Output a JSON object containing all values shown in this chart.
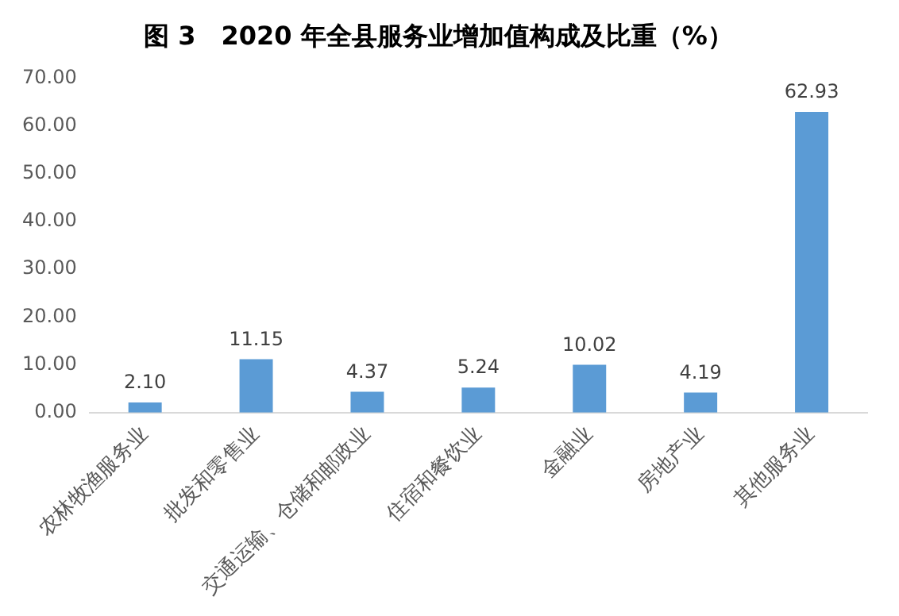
{
  "chart_data": {
    "type": "bar",
    "title": "图 3　2020 年全县服务业增加值构成及比重（%）",
    "categories": [
      "农林牧渔服务业",
      "批发和零售业",
      "交通运输、仓储和邮政业",
      "住宿和餐饮业",
      "金融业",
      "房地产业",
      "其他服务业"
    ],
    "values": [
      2.1,
      11.15,
      4.37,
      5.24,
      10.02,
      4.19,
      62.93
    ],
    "value_labels": [
      "2.10",
      "11.15",
      "4.37",
      "5.24",
      "10.02",
      "4.19",
      "62.93"
    ],
    "color": "#5b9bd5",
    "ylim": [
      0,
      70
    ],
    "yticks": [
      {
        "value": 0,
        "label": "0.00"
      },
      {
        "value": 10,
        "label": "10.00"
      },
      {
        "value": 20,
        "label": "20.00"
      },
      {
        "value": 30,
        "label": "30.00"
      },
      {
        "value": 40,
        "label": "40.00"
      },
      {
        "value": 50,
        "label": "50.00"
      },
      {
        "value": 60,
        "label": "60.00"
      },
      {
        "value": 70,
        "label": "70.00"
      }
    ],
    "grid": false,
    "legend": false
  }
}
